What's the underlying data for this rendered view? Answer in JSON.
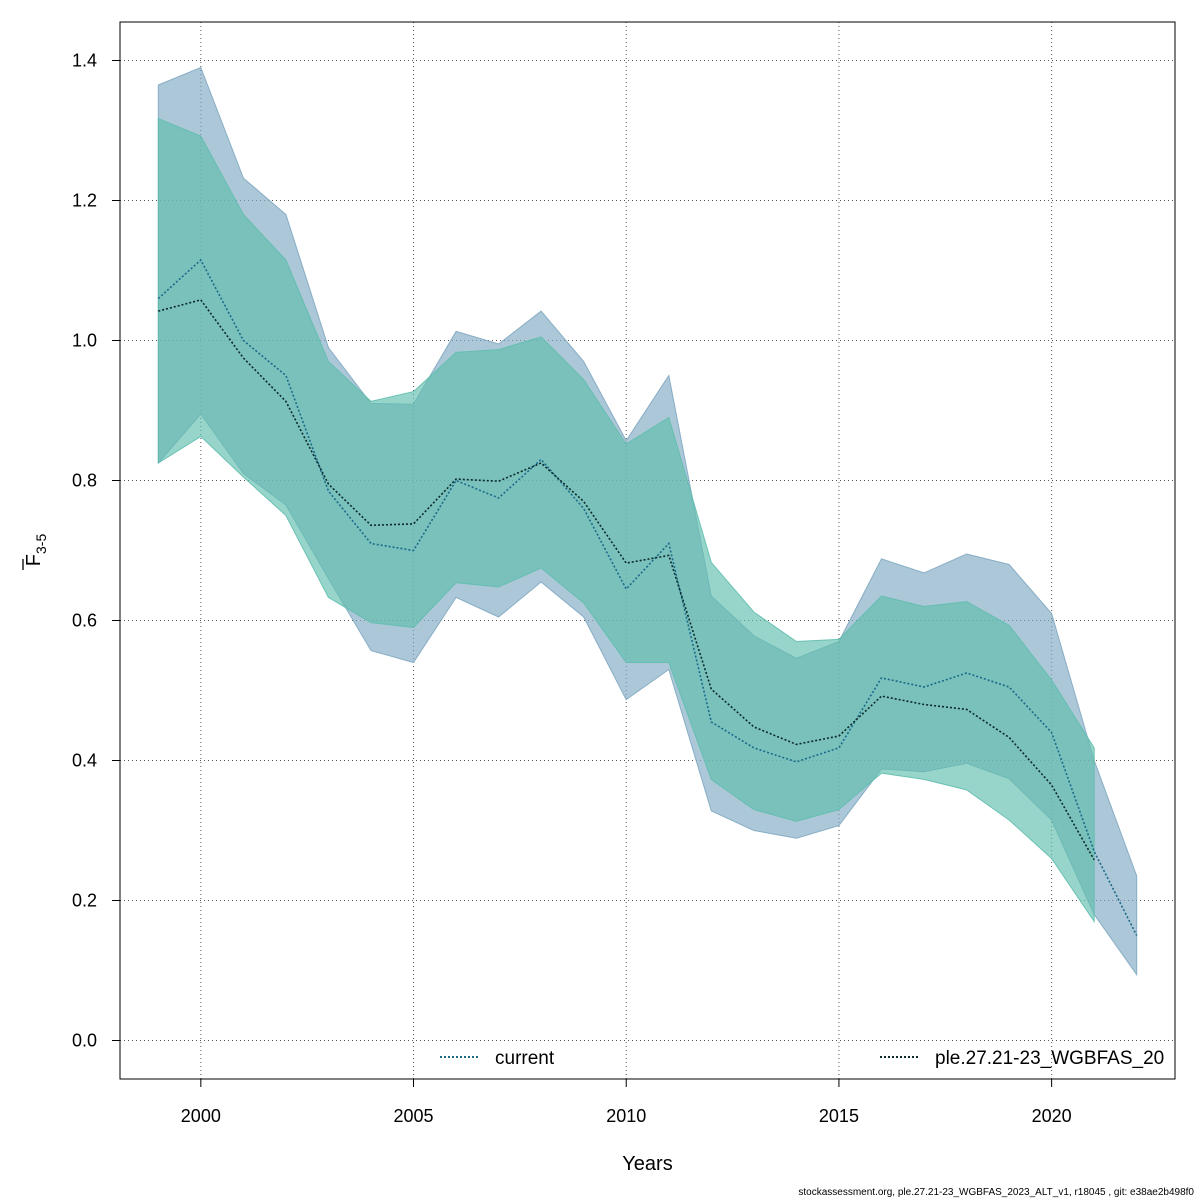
{
  "chart_data": {
    "type": "area",
    "xlabel": "Years",
    "ylabel_main": "F",
    "ylabel_sub": "3-5",
    "xlim": [
      1998.1,
      2022.9
    ],
    "ylim": [
      -0.055,
      1.455
    ],
    "x_ticks": [
      2000,
      2005,
      2010,
      2015,
      2020
    ],
    "y_ticks": [
      0.0,
      0.2,
      0.4,
      0.6,
      0.8,
      1.0,
      1.2,
      1.4
    ],
    "y_tick_labels": [
      "0.0",
      "0.2",
      "0.4",
      "0.6",
      "0.8",
      "1.0",
      "1.2",
      "1.4"
    ],
    "grid": true,
    "legend_placement": "bottom",
    "series": [
      {
        "name": "current",
        "line_color": "#1a6a8a",
        "fill_color": "#7fa9c2",
        "x": [
          1999,
          2000,
          2001,
          2002,
          2003,
          2004,
          2005,
          2006,
          2007,
          2008,
          2009,
          2010,
          2011,
          2012,
          2013,
          2014,
          2015,
          2016,
          2017,
          2018,
          2019,
          2020,
          2021,
          2022
        ],
        "y": [
          1.06,
          1.115,
          1.0,
          0.95,
          0.785,
          0.71,
          0.7,
          0.8,
          0.775,
          0.83,
          0.76,
          0.645,
          0.71,
          0.455,
          0.418,
          0.398,
          0.418,
          0.518,
          0.505,
          0.525,
          0.505,
          0.44,
          0.27,
          0.15
        ],
        "lower": [
          0.825,
          0.895,
          0.81,
          0.765,
          0.66,
          0.557,
          0.54,
          0.633,
          0.605,
          0.655,
          0.605,
          0.487,
          0.53,
          0.328,
          0.3,
          0.289,
          0.307,
          0.388,
          0.384,
          0.396,
          0.374,
          0.315,
          0.18,
          0.094
        ],
        "upper": [
          1.365,
          1.39,
          1.232,
          1.18,
          0.99,
          0.91,
          0.909,
          1.013,
          0.995,
          1.042,
          0.97,
          0.857,
          0.95,
          0.635,
          0.578,
          0.546,
          0.57,
          0.688,
          0.668,
          0.695,
          0.68,
          0.61,
          0.4,
          0.235
        ]
      },
      {
        "name": "ple.27.21-23_WGBFAS_20",
        "line_color": "#0b2a2a",
        "fill_color": "#5fbeae",
        "x": [
          1999,
          2000,
          2001,
          2002,
          2003,
          2004,
          2005,
          2006,
          2007,
          2008,
          2009,
          2010,
          2011,
          2012,
          2013,
          2014,
          2015,
          2016,
          2017,
          2018,
          2019,
          2020,
          2021
        ],
        "y": [
          1.042,
          1.058,
          0.975,
          0.913,
          0.795,
          0.736,
          0.738,
          0.802,
          0.799,
          0.825,
          0.77,
          0.682,
          0.693,
          0.502,
          0.448,
          0.423,
          0.435,
          0.492,
          0.48,
          0.473,
          0.433,
          0.365,
          0.258
        ],
        "lower": [
          0.825,
          0.863,
          0.805,
          0.75,
          0.633,
          0.597,
          0.59,
          0.654,
          0.648,
          0.675,
          0.625,
          0.54,
          0.54,
          0.373,
          0.33,
          0.313,
          0.33,
          0.382,
          0.373,
          0.358,
          0.315,
          0.26,
          0.17
        ],
        "upper": [
          1.317,
          1.292,
          1.18,
          1.115,
          0.97,
          0.913,
          0.927,
          0.983,
          0.987,
          1.005,
          0.944,
          0.852,
          0.89,
          0.683,
          0.612,
          0.57,
          0.573,
          0.635,
          0.62,
          0.627,
          0.593,
          0.515,
          0.418
        ]
      }
    ]
  },
  "footer_text": "stockassessment.org, ple.27.21-23_WGBFAS_2023_ALT_v1, r18045 , git: e38ae2b498f0"
}
